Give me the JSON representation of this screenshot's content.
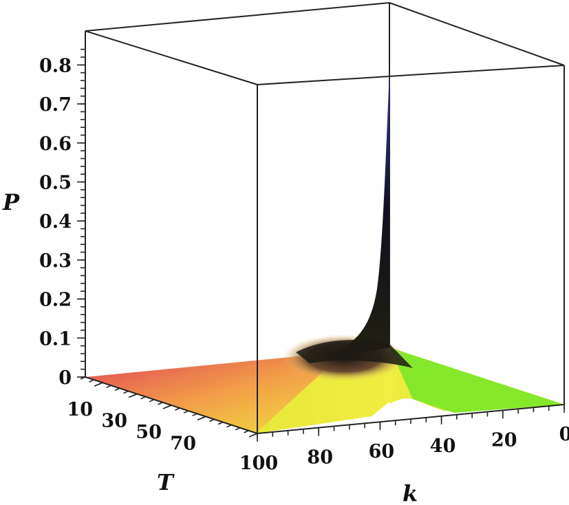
{
  "chart_data": {
    "type": "surface3d",
    "title": "",
    "axes": {
      "z": {
        "label": "P",
        "range": [
          0,
          0.85
        ],
        "ticks": [
          "0",
          "0.1",
          "0.2",
          "0.3",
          "0.4",
          "0.5",
          "0.6",
          "0.7",
          "0.8"
        ]
      },
      "k": {
        "label": "k",
        "range": [
          0,
          100
        ],
        "ticks": [
          "100",
          "80",
          "60",
          "40",
          "20",
          "0"
        ]
      },
      "T": {
        "label": "T",
        "range": [
          0,
          100
        ],
        "ticks": [
          "10",
          "30",
          "50",
          "70"
        ]
      }
    },
    "surface_description_points": [
      {
        "k": 55,
        "T": 0,
        "P": 0.85
      },
      {
        "k": 55,
        "T": 5,
        "P": 0.2
      },
      {
        "k": 55,
        "T": 15,
        "P": 0.1
      },
      {
        "k": 60,
        "T": 50,
        "P": 0.04
      },
      {
        "k": 10,
        "T": 50,
        "P": 0.0
      },
      {
        "k": 90,
        "T": 50,
        "P": 0.0
      }
    ],
    "colors": {
      "low_T": "#e0205a",
      "mid_T": "#f2f230",
      "peak": "#0a0a1a",
      "low_k": "#7ef21a"
    }
  }
}
